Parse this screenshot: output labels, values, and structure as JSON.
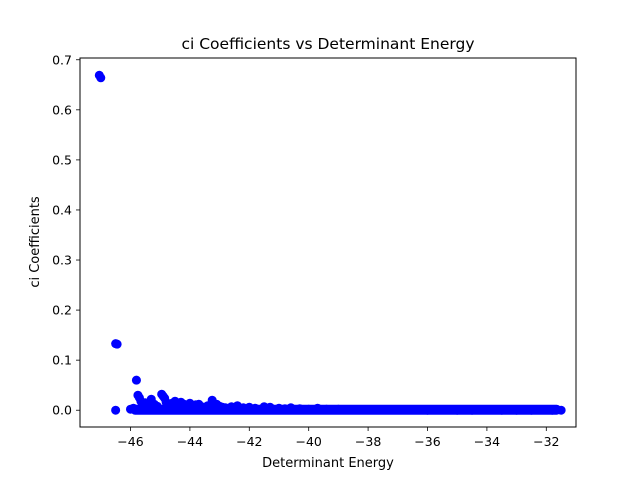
{
  "chart_data": {
    "type": "scatter",
    "title": "ci Coefficients vs Determinant Energy",
    "xlabel": "Determinant Energy",
    "ylabel": "ci Coefficients",
    "xlim": [
      -47.7,
      -31.0
    ],
    "ylim": [
      -0.0335,
      0.7035
    ],
    "xticks": [
      -46,
      -44,
      -42,
      -40,
      -38,
      -36,
      -34,
      -32
    ],
    "xtick_labels": [
      "−46",
      "−44",
      "−42",
      "−40",
      "−38",
      "−36",
      "−34",
      "−32"
    ],
    "yticks": [
      0.0,
      0.1,
      0.2,
      0.3,
      0.4,
      0.5,
      0.6,
      0.7
    ],
    "ytick_labels": [
      "0.0",
      "0.1",
      "0.2",
      "0.3",
      "0.4",
      "0.5",
      "0.6",
      "0.7"
    ],
    "grid": false,
    "marker_color": "#0000ff",
    "series": [
      {
        "points": [
          [
            -47.05,
            0.669
          ],
          [
            -47.0,
            0.664
          ],
          [
            -46.5,
            0.133
          ],
          [
            -46.45,
            0.132
          ],
          [
            -46.5,
            0.0
          ],
          [
            -46.0,
            0.002
          ],
          [
            -45.9,
            0.004
          ],
          [
            -45.8,
            0.06
          ],
          [
            -45.75,
            0.03
          ],
          [
            -45.7,
            0.025
          ],
          [
            -45.65,
            0.018
          ],
          [
            -45.6,
            0.012
          ],
          [
            -45.55,
            0.008
          ],
          [
            -45.5,
            0.015
          ],
          [
            -45.4,
            0.01
          ],
          [
            -45.3,
            0.022
          ],
          [
            -45.2,
            0.012
          ],
          [
            -45.1,
            0.008
          ],
          [
            -44.95,
            0.032
          ],
          [
            -44.9,
            0.028
          ],
          [
            -44.85,
            0.024
          ],
          [
            -44.8,
            0.016
          ],
          [
            -44.7,
            0.01
          ],
          [
            -44.6,
            0.014
          ],
          [
            -44.5,
            0.018
          ],
          [
            -44.4,
            0.011
          ],
          [
            -44.3,
            0.016
          ],
          [
            -44.2,
            0.012
          ],
          [
            -44.1,
            0.009
          ],
          [
            -44.0,
            0.014
          ],
          [
            -43.9,
            0.008
          ],
          [
            -43.8,
            0.011
          ],
          [
            -43.7,
            0.012
          ],
          [
            -43.6,
            0.007
          ],
          [
            -43.5,
            0.006
          ],
          [
            -43.4,
            0.009
          ],
          [
            -43.25,
            0.02
          ],
          [
            -43.2,
            0.014
          ],
          [
            -43.1,
            0.012
          ],
          [
            -43.0,
            0.008
          ],
          [
            -42.9,
            0.006
          ],
          [
            -42.8,
            0.005
          ],
          [
            -42.6,
            0.007
          ],
          [
            -42.4,
            0.009
          ],
          [
            -42.2,
            0.005
          ],
          [
            -42.0,
            0.006
          ],
          [
            -41.8,
            0.004
          ],
          [
            -41.5,
            0.007
          ],
          [
            -41.3,
            0.006
          ],
          [
            -41.0,
            0.004
          ],
          [
            -40.8,
            0.003
          ],
          [
            -40.6,
            0.005
          ],
          [
            -40.3,
            0.003
          ],
          [
            -40.0,
            0.002
          ],
          [
            -39.7,
            0.004
          ],
          [
            -39.4,
            0.002
          ],
          [
            -39.0,
            0.002
          ],
          [
            -38.5,
            0.001
          ],
          [
            -38.0,
            0.001
          ],
          [
            -37.5,
            0.001
          ],
          [
            -37.0,
            0.001
          ],
          [
            -36.5,
            0.001
          ],
          [
            -36.0,
            0.0
          ],
          [
            -35.5,
            0.001
          ],
          [
            -35.0,
            0.0
          ],
          [
            -34.5,
            0.0
          ],
          [
            -34.0,
            0.001
          ],
          [
            -33.5,
            0.0
          ],
          [
            -33.0,
            0.0
          ],
          [
            -32.5,
            0.0
          ],
          [
            -32.0,
            0.001
          ],
          [
            -31.8,
            0.0
          ],
          [
            -31.5,
            0.0
          ]
        ]
      }
    ],
    "dense_band": {
      "x_range": [
        -46.0,
        -31.5
      ],
      "y_range": [
        0.0,
        0.002
      ]
    }
  }
}
